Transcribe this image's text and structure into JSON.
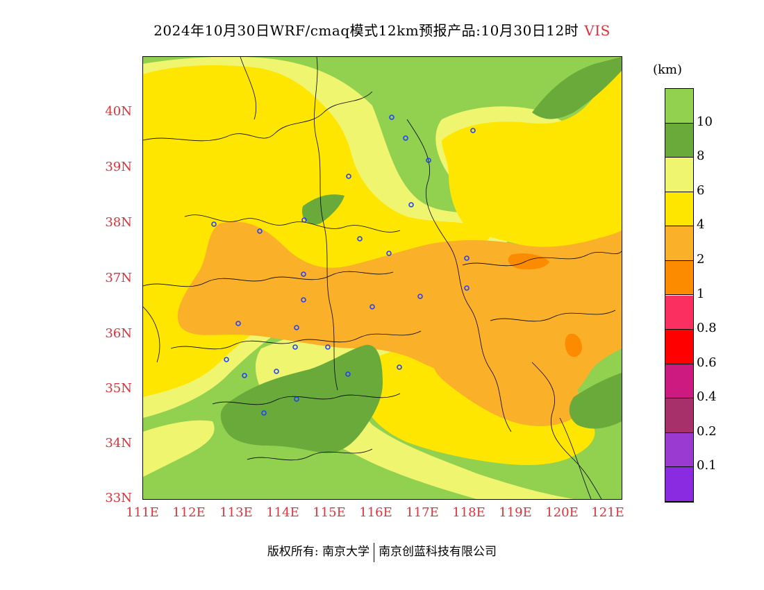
{
  "title": {
    "main": "2024年10月30日WRF/cmaq模式12km预报产品:10月30日12时",
    "variable": "VIS"
  },
  "map": {
    "lat_labels": [
      "40N",
      "39N",
      "38N",
      "37N",
      "36N",
      "35N",
      "34N",
      "33N"
    ],
    "lon_labels": [
      "111E",
      "112E",
      "113E",
      "114E",
      "115E",
      "116E",
      "117E",
      "118E",
      "119E",
      "120E",
      "121E"
    ],
    "colors": {
      "gt10": "#92d050",
      "8-10": "#6aaa3a",
      "6-8": "#f0f570",
      "4-6": "#ffe600",
      "2-4": "#fbb02a",
      "1-2": "#fd8b00",
      "boundary": "#000000",
      "station": "#2040ff",
      "axis_text": "#e0303a"
    }
  },
  "colorbar": {
    "units": "(km)",
    "labels": [
      "10",
      "8",
      "6",
      "4",
      "2",
      "1",
      "0.8",
      "0.6",
      "0.4",
      "0.2",
      "0.1"
    ],
    "segments": [
      "#92d050",
      "#6aaa3a",
      "#f0f570",
      "#ffe600",
      "#fbb02a",
      "#fd8b00",
      "#fb3060",
      "#ff0000",
      "#cc1a80",
      "#a8306a",
      "#9a3ad0",
      "#8a2be2"
    ]
  },
  "footer": {
    "left": "版权所有: 南京大学",
    "right": "南京创蓝科技有限公司"
  }
}
